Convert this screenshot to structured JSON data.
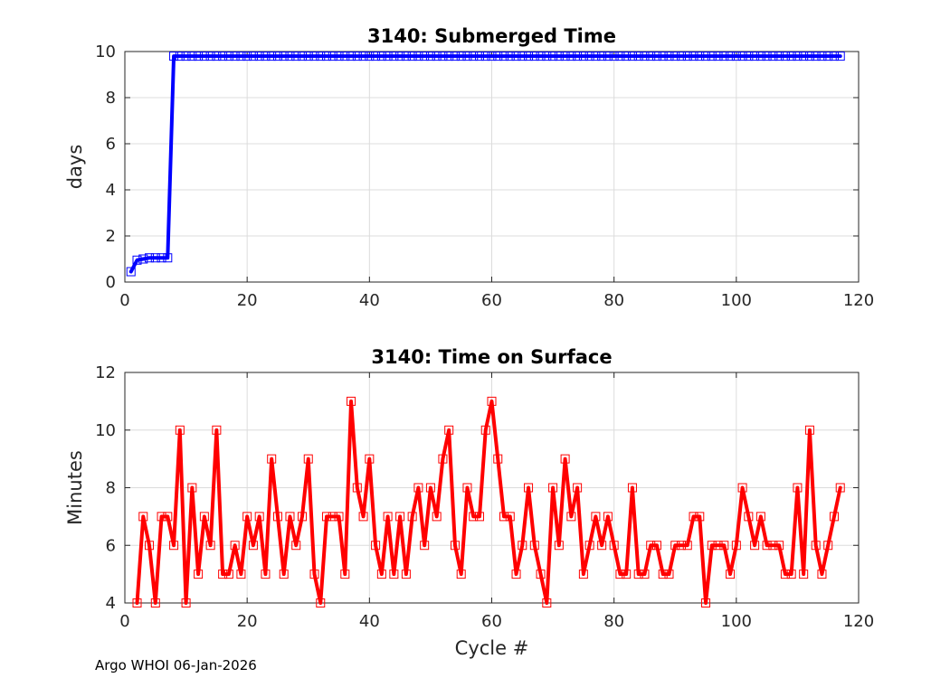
{
  "footer": "Argo WHOI 06-Jan-2026",
  "chart_data": [
    {
      "type": "line",
      "title": "3140: Submerged Time",
      "xlabel": "",
      "ylabel": "days",
      "xlim": [
        0,
        120
      ],
      "ylim": [
        0,
        10
      ],
      "xticks": [
        "0",
        "20",
        "40",
        "60",
        "80",
        "100",
        "120"
      ],
      "yticks": [
        "0",
        "2",
        "4",
        "6",
        "8",
        "10"
      ],
      "color": "#0000ff",
      "marker": "square",
      "series": [
        {
          "name": "Submerged Time",
          "x": [
            1,
            2,
            3,
            4,
            5,
            6,
            7,
            8,
            9,
            10,
            11,
            12,
            13,
            14,
            15,
            16,
            17,
            18,
            19,
            20,
            21,
            22,
            23,
            24,
            25,
            26,
            27,
            28,
            29,
            30,
            31,
            32,
            33,
            34,
            35,
            36,
            37,
            38,
            39,
            40,
            41,
            42,
            43,
            44,
            45,
            46,
            47,
            48,
            49,
            50,
            51,
            52,
            53,
            54,
            55,
            56,
            57,
            58,
            59,
            60,
            61,
            62,
            63,
            64,
            65,
            66,
            67,
            68,
            69,
            70,
            71,
            72,
            73,
            74,
            75,
            76,
            77,
            78,
            79,
            80,
            81,
            82,
            83,
            84,
            85,
            86,
            87,
            88,
            89,
            90,
            91,
            92,
            93,
            94,
            95,
            96,
            97,
            98,
            99,
            100,
            101,
            102,
            103,
            104,
            105,
            106,
            107,
            108,
            109,
            110,
            111,
            112,
            113,
            114,
            115,
            116,
            117
          ],
          "values": [
            0.45,
            0.95,
            1.0,
            1.05,
            1.05,
            1.05,
            1.05,
            9.8,
            9.8,
            9.8,
            9.8,
            9.8,
            9.8,
            9.8,
            9.8,
            9.8,
            9.8,
            9.8,
            9.8,
            9.8,
            9.8,
            9.8,
            9.8,
            9.8,
            9.8,
            9.8,
            9.8,
            9.8,
            9.8,
            9.8,
            9.8,
            9.8,
            9.8,
            9.8,
            9.8,
            9.8,
            9.8,
            9.8,
            9.8,
            9.8,
            9.8,
            9.8,
            9.8,
            9.8,
            9.8,
            9.8,
            9.8,
            9.8,
            9.8,
            9.8,
            9.8,
            9.8,
            9.8,
            9.8,
            9.8,
            9.8,
            9.8,
            9.8,
            9.8,
            9.8,
            9.8,
            9.8,
            9.8,
            9.8,
            9.8,
            9.8,
            9.8,
            9.8,
            9.8,
            9.8,
            9.8,
            9.8,
            9.8,
            9.8,
            9.8,
            9.8,
            9.8,
            9.8,
            9.8,
            9.8,
            9.8,
            9.8,
            9.8,
            9.8,
            9.8,
            9.8,
            9.8,
            9.8,
            9.8,
            9.8,
            9.8,
            9.8,
            9.8,
            9.8,
            9.8,
            9.8,
            9.8,
            9.8,
            9.8,
            9.8,
            9.8,
            9.8,
            9.8,
            9.8,
            9.8,
            9.8,
            9.8,
            9.8,
            9.8,
            9.8,
            9.8,
            9.8,
            9.8,
            9.8,
            9.8,
            9.8,
            9.8
          ]
        }
      ]
    },
    {
      "type": "line",
      "title": "3140: Time on Surface",
      "xlabel": "Cycle #",
      "ylabel": "Minutes",
      "xlim": [
        0,
        120
      ],
      "ylim": [
        4,
        12
      ],
      "xticks": [
        "0",
        "20",
        "40",
        "60",
        "80",
        "100",
        "120"
      ],
      "yticks": [
        "4",
        "6",
        "8",
        "10",
        "12"
      ],
      "color": "#ff0000",
      "marker": "square",
      "series": [
        {
          "name": "Time on Surface",
          "x": [
            2,
            3,
            4,
            5,
            6,
            7,
            8,
            9,
            10,
            11,
            12,
            13,
            14,
            15,
            16,
            17,
            18,
            19,
            20,
            21,
            22,
            23,
            24,
            25,
            26,
            27,
            28,
            29,
            30,
            31,
            32,
            33,
            34,
            35,
            36,
            37,
            38,
            39,
            40,
            41,
            42,
            43,
            44,
            45,
            46,
            47,
            48,
            49,
            50,
            51,
            52,
            53,
            54,
            55,
            56,
            57,
            58,
            59,
            60,
            61,
            62,
            63,
            64,
            65,
            66,
            67,
            68,
            69,
            70,
            71,
            72,
            73,
            74,
            75,
            76,
            77,
            78,
            79,
            80,
            81,
            82,
            83,
            84,
            85,
            86,
            87,
            88,
            89,
            90,
            91,
            92,
            93,
            94,
            95,
            96,
            97,
            98,
            99,
            100,
            101,
            102,
            103,
            104,
            105,
            106,
            107,
            108,
            109,
            110,
            111,
            112,
            113,
            114,
            115,
            116,
            117
          ],
          "values": [
            4,
            7,
            6,
            4,
            7,
            7,
            6,
            10,
            4,
            8,
            5,
            7,
            6,
            10,
            5,
            5,
            6,
            5,
            7,
            6,
            7,
            5,
            9,
            7,
            5,
            7,
            6,
            7,
            9,
            5,
            4,
            7,
            7,
            7,
            5,
            11,
            8,
            7,
            9,
            6,
            5,
            7,
            5,
            7,
            5,
            7,
            8,
            6,
            8,
            7,
            9,
            10,
            6,
            5,
            8,
            7,
            7,
            10,
            11,
            9,
            7,
            7,
            5,
            6,
            8,
            6,
            5,
            4,
            8,
            6,
            9,
            7,
            8,
            5,
            6,
            7,
            6,
            7,
            6,
            5,
            5,
            8,
            5,
            5,
            6,
            6,
            5,
            5,
            6,
            6,
            6,
            7,
            7,
            4,
            6,
            6,
            6,
            5,
            6,
            8,
            7,
            6,
            7,
            6,
            6,
            6,
            5,
            5,
            8,
            5,
            10,
            6,
            5,
            6,
            7,
            8
          ]
        }
      ]
    }
  ]
}
